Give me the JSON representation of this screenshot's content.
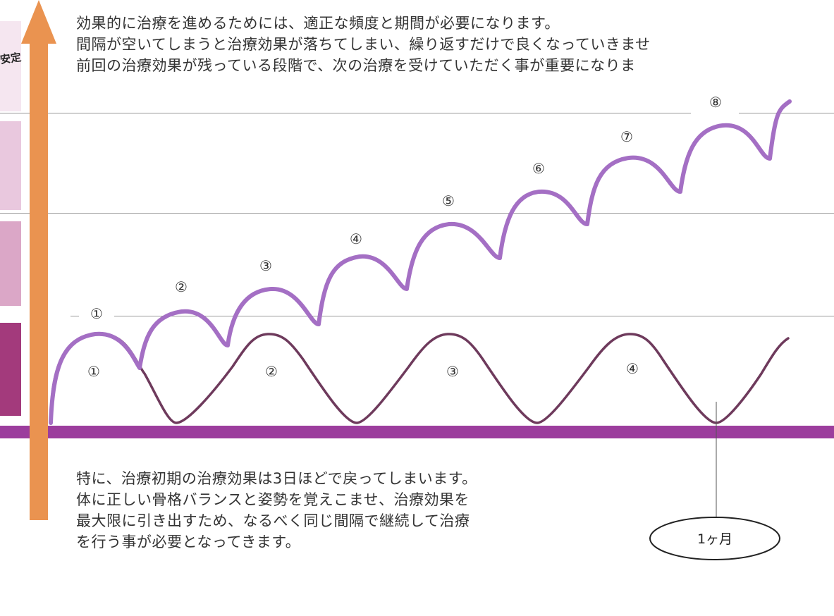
{
  "top_text": [
    "効果的に治療を進めるためには、適正な頻度と期間が必要になります。",
    "間隔が空いてしまうと治療効果が落ちてしまい、繰り返すだけで良くなっていきませ",
    "前回の治療効果が残っている段階で、次の治療を受けていただく事が重要になりま"
  ],
  "bottom_text": [
    "特に、治療初期の治療効果は3日ほどで戻ってしまいます。",
    "体に正しい骨格バランスと姿勢を覚えこませ、治療効果を",
    "最大限に引き出すため、なるべく同じ間隔で継続して治療",
    "を行う事が必要となってきます。"
  ],
  "band_label": "安定",
  "month_label": "1ヶ月",
  "upper_curve_labels": [
    "①",
    "②",
    "③",
    "④",
    "⑤",
    "⑥",
    "⑦",
    "⑧"
  ],
  "lower_curve_labels": [
    "①",
    "②",
    "③",
    "④"
  ],
  "colors": {
    "arrow": "#ea9350",
    "upper_curve": "#a46fc4",
    "lower_curve": "#6e3a5c",
    "baseline": "#9c3d9d",
    "band_1": "#f5e6f0",
    "band_2": "#e9c8de",
    "band_3": "#dba7c7",
    "band_4": "#a33a7c"
  }
}
